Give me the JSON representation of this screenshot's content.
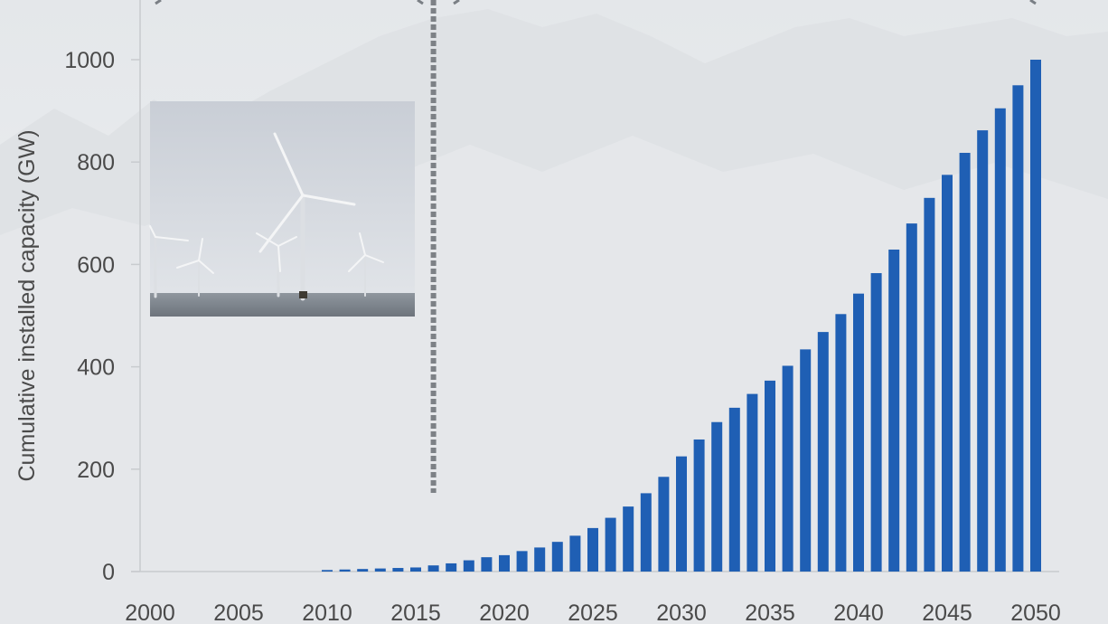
{
  "chart_data": {
    "type": "bar",
    "title": "",
    "xlabel": "",
    "ylabel": "Cumulative installed capacity (GW)",
    "ylim": [
      0,
      1000
    ],
    "y_ticks": [
      0,
      200,
      400,
      600,
      800,
      1000
    ],
    "x_ticks": [
      2000,
      2005,
      2010,
      2015,
      2020,
      2025,
      2030,
      2035,
      2040,
      2045,
      2050
    ],
    "grid": false,
    "legend": "none",
    "bar_color": "#1f5fb4",
    "divider_year": 2016,
    "x": [
      2010,
      2011,
      2012,
      2013,
      2014,
      2015,
      2016,
      2017,
      2018,
      2019,
      2020,
      2021,
      2022,
      2023,
      2024,
      2025,
      2026,
      2027,
      2028,
      2029,
      2030,
      2031,
      2032,
      2033,
      2034,
      2035,
      2036,
      2037,
      2038,
      2039,
      2040,
      2041,
      2042,
      2043,
      2044,
      2045,
      2046,
      2047,
      2048,
      2049,
      2050
    ],
    "values": [
      3,
      4,
      5,
      6,
      7,
      8,
      12,
      16,
      22,
      28,
      32,
      40,
      47,
      58,
      70,
      85,
      105,
      127,
      153,
      185,
      225,
      258,
      292,
      320,
      347,
      373,
      402,
      434,
      468,
      503,
      543,
      583,
      629,
      680,
      730,
      775,
      818,
      862,
      905,
      950,
      1000
    ]
  },
  "photo": {
    "icon": "offshore-wind-turbines-photo"
  }
}
